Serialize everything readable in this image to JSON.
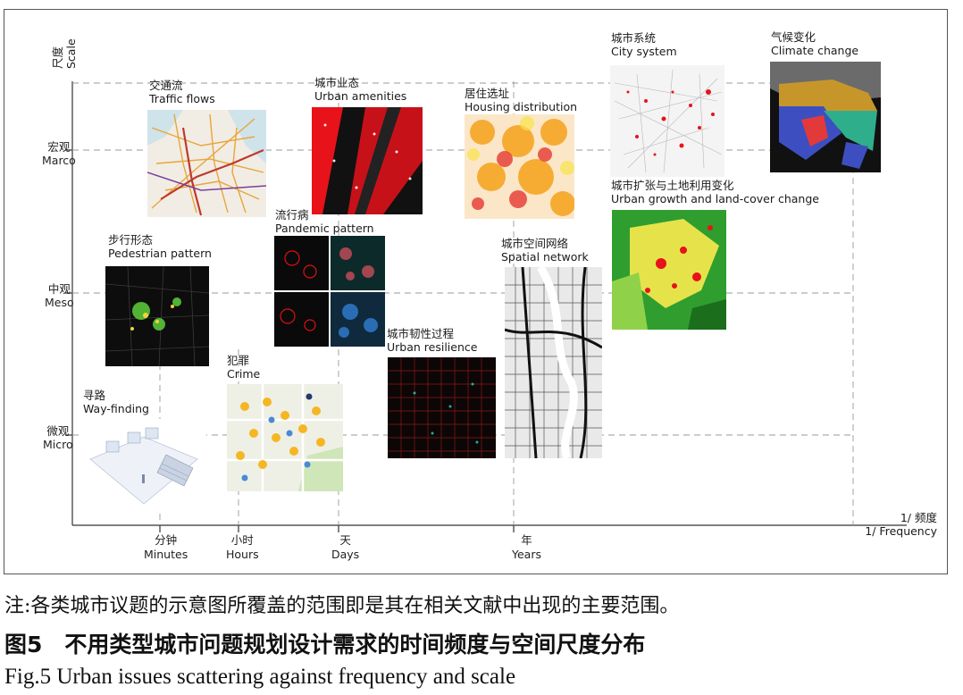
{
  "axis": {
    "y_title_cn": "尺度",
    "y_title_en": "Scale",
    "x_title_cn": "1/ 频度",
    "x_title_en": "1/ Frequency",
    "y_levels": [
      {
        "cn": "宏观",
        "en": "Marco"
      },
      {
        "cn": "中观",
        "en": "Meso"
      },
      {
        "cn": "微观",
        "en": "Micro"
      }
    ],
    "x_levels": [
      {
        "cn": "分钟",
        "en": "Minutes"
      },
      {
        "cn": "小时",
        "en": "Hours"
      },
      {
        "cn": "天",
        "en": "Days"
      },
      {
        "cn": "年",
        "en": "Years"
      }
    ]
  },
  "items": [
    {
      "cn": "交通流",
      "en": "Traffic flows",
      "icon": "traffic-map-thumbnail"
    },
    {
      "cn": "城市业态",
      "en": "Urban amenities",
      "icon": "amenities-map-thumbnail"
    },
    {
      "cn": "居住选址",
      "en": "Housing distribution",
      "icon": "housing-map-thumbnail"
    },
    {
      "cn": "城市系统",
      "en": "City system",
      "icon": "city-system-map-thumbnail"
    },
    {
      "cn": "气候变化",
      "en": "Climate change",
      "icon": "climate-map-thumbnail"
    },
    {
      "cn": "城市扩张与土地利用变化",
      "en": "Urban growth and land-cover change",
      "icon": "landcover-map-thumbnail"
    },
    {
      "cn": "步行形态",
      "en": "Pedestrian pattern",
      "icon": "pedestrian-map-thumbnail"
    },
    {
      "cn": "流行病",
      "en": "Pandemic pattern",
      "icon": "pandemic-cells-thumbnail"
    },
    {
      "cn": "城市空间网络",
      "en": "Spatial network",
      "icon": "street-network-thumbnail"
    },
    {
      "cn": "城市韧性过程",
      "en": "Urban resilience",
      "icon": "resilience-map-thumbnail"
    },
    {
      "cn": "犯罪",
      "en": "Crime",
      "icon": "crime-map-thumbnail"
    },
    {
      "cn": "寻路",
      "en": "Way-finding",
      "icon": "wayfinding-scene-thumbnail"
    }
  ],
  "caption": {
    "note": "注:各类城市议题的示意图所覆盖的范围即是其在相关文献中出现的主要范围。",
    "title": "图5　不用类型城市问题规划设计需求的时间频度与空间尺度分布",
    "english": "Fig.5  Urban issues scattering against frequency and scale"
  },
  "colors": {
    "axis": "#333333",
    "guide": "#9a9a9a",
    "red": "#e8121b",
    "yellow": "#f5c518"
  }
}
